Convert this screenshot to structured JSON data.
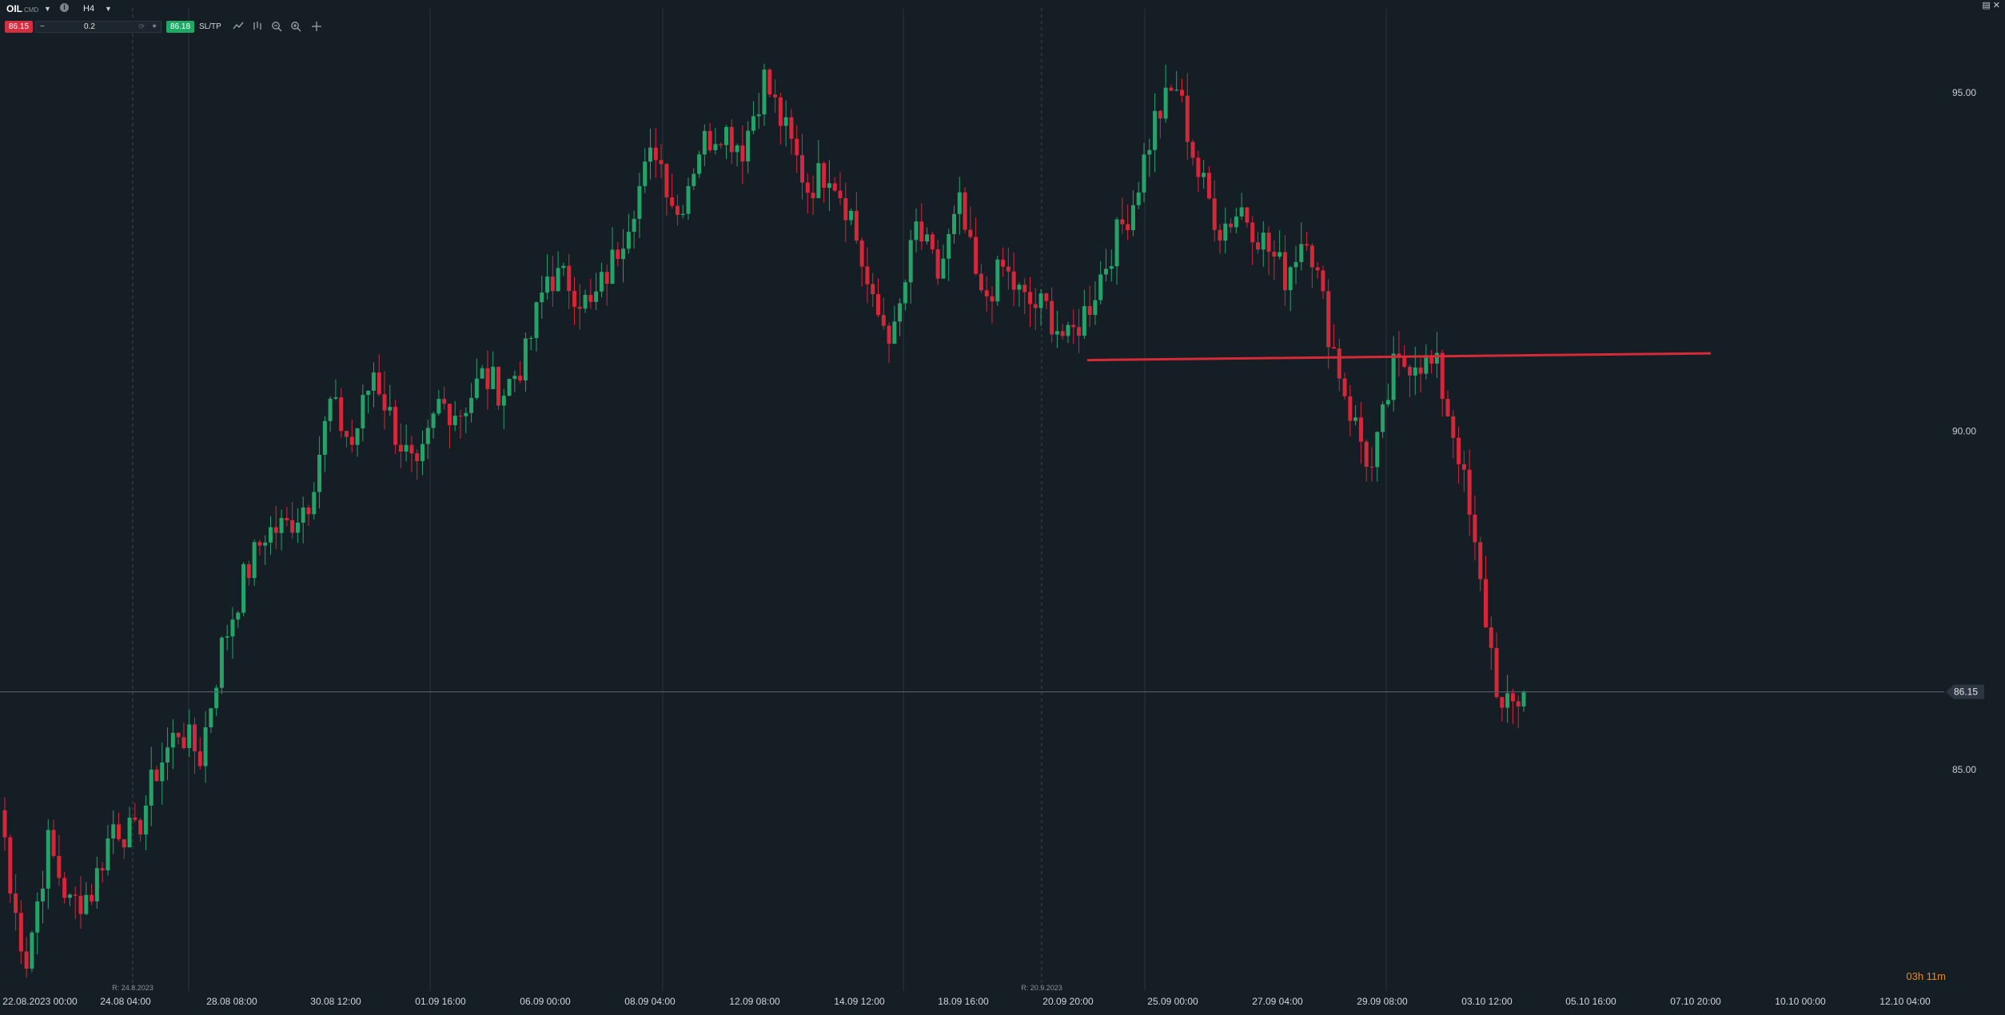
{
  "toolbar": {
    "symbol": "OIL",
    "symbol_type": "CMD",
    "info_icon": "info-icon",
    "timeframe": "H4",
    "sell_price": "86.15",
    "quantity": "0.2",
    "buy_price": "86.18",
    "sltp_label": "SL/TP",
    "icons": [
      "line-chart-icon",
      "indicators-icon",
      "zoom-out-icon",
      "zoom-in-icon",
      "crosshair-icon"
    ],
    "window_icons": [
      "window-icon",
      "close-icon"
    ]
  },
  "chart_data": {
    "type": "candlestick",
    "instrument": "OIL",
    "timeframe": "H4",
    "y_ticks": [
      "95.00",
      "90.00",
      "85.00"
    ],
    "ylim": [
      80.6,
      96.6
    ],
    "current_price": "86.15",
    "current_price_value": 86.15,
    "x_ticks": [
      "22.08.2023 00:00",
      "24.08 04:00",
      "28.08 08:00",
      "30.08 12:00",
      "01.09 16:00",
      "06.09 00:00",
      "08.09 04:00",
      "12.09 08:00",
      "14.09 12:00",
      "18.09 16:00",
      "20.09 20:00",
      "25.09 00:00",
      "27.09 04:00",
      "29.09 08:00",
      "03.10 12:00",
      "05.10 16:00",
      "07.10 20:00",
      "10.10 00:00",
      "12.10 04:00"
    ],
    "rollover_markers": [
      {
        "label": "R: 24.8.2023",
        "at": "24.08 04:00"
      },
      {
        "label": "R: 20.9.2023",
        "at": "20.09 20:00"
      }
    ],
    "horizontal_line": {
      "from_price": 91.05,
      "to_price": 91.15,
      "color": "#d62a36"
    },
    "anchors": [
      {
        "price": 83.5
      },
      {
        "price": 82.2
      },
      {
        "price": 83.9
      },
      {
        "price": 83.0
      },
      {
        "price": 83.2
      },
      {
        "price": 84.2
      },
      {
        "price": 84.0
      },
      {
        "price": 85.0
      },
      {
        "price": 85.6
      },
      {
        "price": 85.2
      },
      {
        "price": 86.8
      },
      {
        "price": 87.8
      },
      {
        "price": 88.5
      },
      {
        "price": 88.6
      },
      {
        "price": 89.0
      },
      {
        "price": 90.4
      },
      {
        "price": 89.8
      },
      {
        "price": 90.9
      },
      {
        "price": 90.0
      },
      {
        "price": 89.3
      },
      {
        "price": 90.4
      },
      {
        "price": 90.3
      },
      {
        "price": 90.8
      },
      {
        "price": 90.6
      },
      {
        "price": 91.1
      },
      {
        "price": 92.3
      },
      {
        "price": 92.2
      },
      {
        "price": 91.8
      },
      {
        "price": 92.5
      },
      {
        "price": 93.4
      },
      {
        "price": 94.2
      },
      {
        "price": 93.2
      },
      {
        "price": 94.2
      },
      {
        "price": 94.5
      },
      {
        "price": 94.2
      },
      {
        "price": 95.2
      },
      {
        "price": 94.4
      },
      {
        "price": 93.6
      },
      {
        "price": 93.9
      },
      {
        "price": 93.2
      },
      {
        "price": 91.8
      },
      {
        "price": 91.4
      },
      {
        "price": 93.0
      },
      {
        "price": 92.3
      },
      {
        "price": 93.3
      },
      {
        "price": 91.9
      },
      {
        "price": 92.4
      },
      {
        "price": 91.9
      },
      {
        "price": 91.8
      },
      {
        "price": 91.3
      },
      {
        "price": 91.9
      },
      {
        "price": 92.7
      },
      {
        "price": 93.4
      },
      {
        "price": 94.6
      },
      {
        "price": 95.1
      },
      {
        "price": 93.8
      },
      {
        "price": 93.0
      },
      {
        "price": 93.3
      },
      {
        "price": 92.8
      },
      {
        "price": 92.3
      },
      {
        "price": 93.0
      },
      {
        "price": 91.5
      },
      {
        "price": 90.3
      },
      {
        "price": 89.4
      },
      {
        "price": 90.9
      },
      {
        "price": 91.1
      },
      {
        "price": 90.9
      },
      {
        "price": 89.7
      },
      {
        "price": 87.7
      },
      {
        "price": 85.8
      },
      {
        "price": 86.1
      }
    ]
  }
}
